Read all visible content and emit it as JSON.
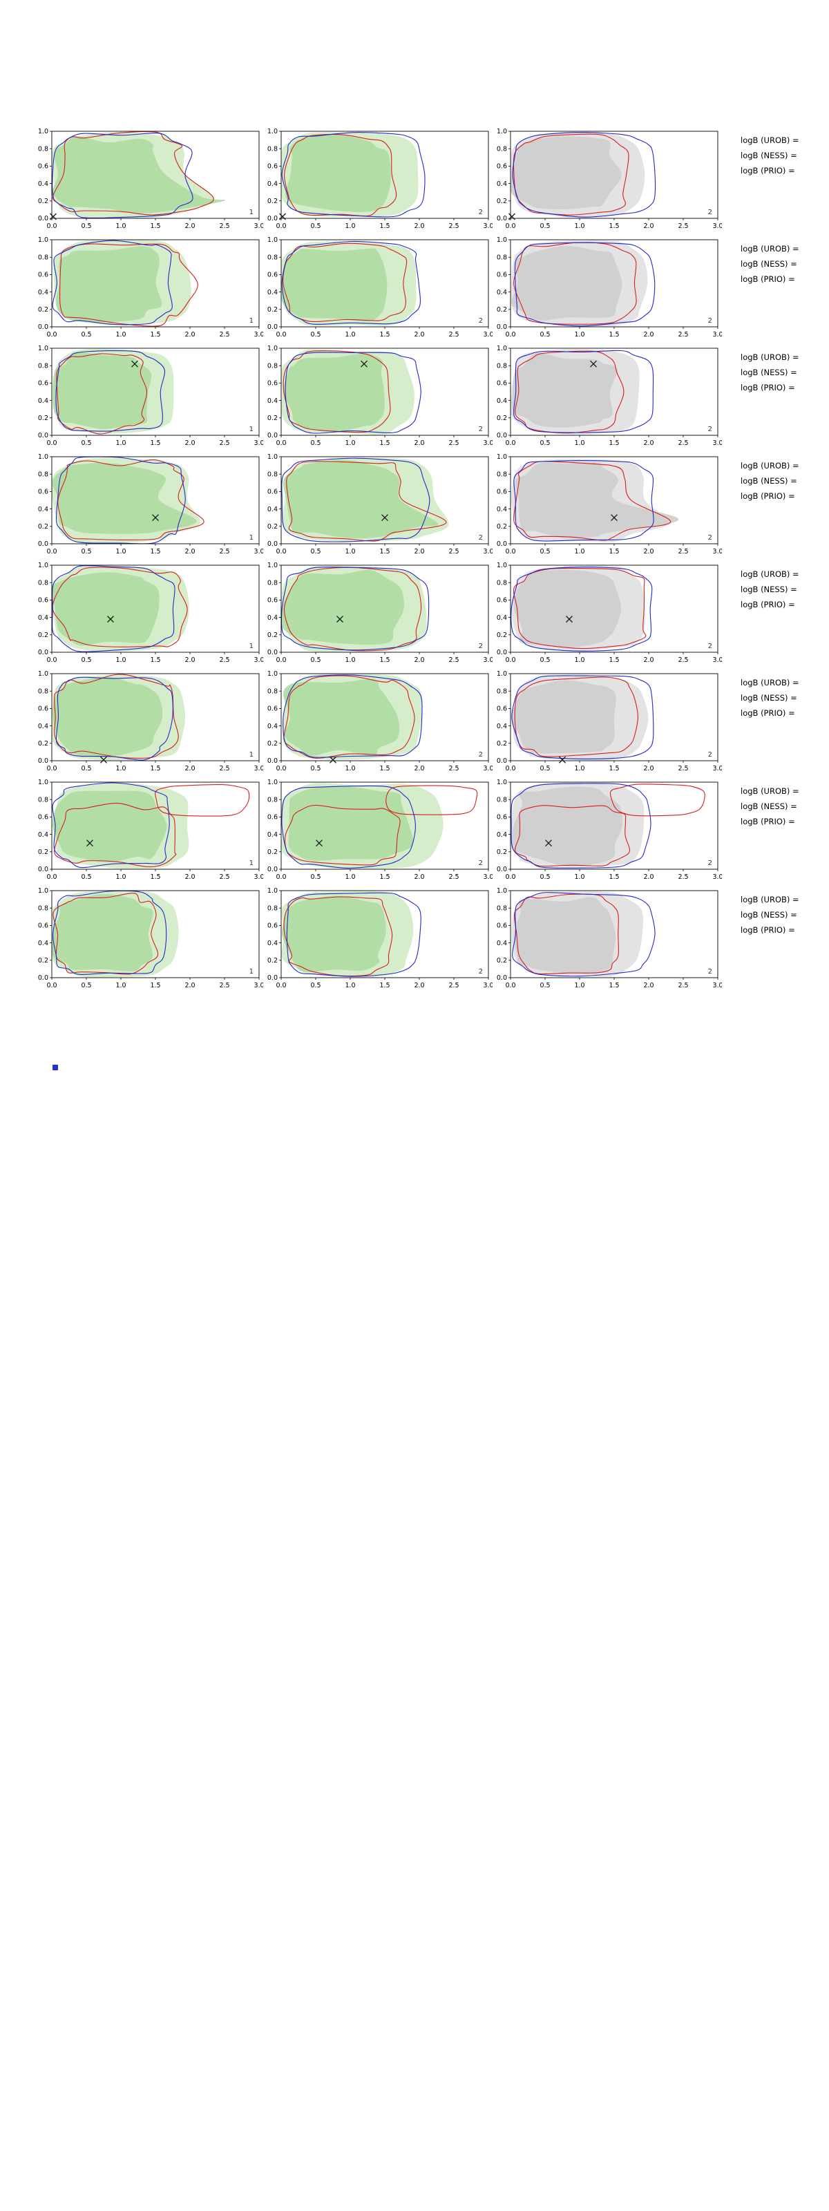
{
  "page": {
    "background": "#ffffff"
  },
  "colors": {
    "red_line": "#d81e1e",
    "blue_line": "#2228cc",
    "green_fill_outer": "#d6edcb",
    "green_fill_inner": "#aedca2",
    "gray_fill_outer": "#e3e3e3",
    "gray_fill_inner": "#cdcdcd",
    "axis": "#000000",
    "tick_label": "#000000",
    "corner_label": "#333333",
    "marker": "#1a1a1a",
    "stray_marker": "#2233cc"
  },
  "chart_data": {
    "type": "contour_grid",
    "rows": 8,
    "cols": 3,
    "xlim": [
      0,
      3
    ],
    "ylim": [
      0,
      1
    ],
    "x_ticks": [
      "0.0",
      "0.5",
      "1.0",
      "1.5",
      "2.0",
      "2.5",
      "3.0"
    ],
    "y_ticks": [
      "0.0",
      "0.2",
      "0.4",
      "0.6",
      "0.8",
      "1.0"
    ],
    "legend": "red and blue KDE contour lines over green (cols 1-2) / gray (col 3) filled density regions",
    "row_annotations": [
      [
        "logB (UROB) =",
        "logB (NESS) =",
        "logB (PRIO) ="
      ],
      [
        "logB (UROB) =",
        "logB (NESS) =",
        "logB (PRIO) ="
      ],
      [
        "logB (UROB) =",
        "logB (NESS) =",
        "logB (PRIO) ="
      ],
      [
        "logB (UROB) =",
        "logB (NESS) =",
        "logB (PRIO) ="
      ],
      [
        "logB (UROB) =",
        "logB (NESS) =",
        "logB (PRIO) ="
      ],
      [
        "logB (UROB) =",
        "logB (NESS) =",
        "logB (PRIO) ="
      ],
      [
        "logB (UROB) =",
        "logB (NESS) =",
        "logB (PRIO) ="
      ],
      [
        "logB (UROB) =",
        "logB (NESS) =",
        "logB (PRIO) ="
      ]
    ],
    "panels": [
      {
        "row": 1,
        "col": 1,
        "corner_label": "1",
        "fill": "green",
        "marker": [
          0.02,
          0.02
        ],
        "blue_max": 2.0,
        "red_max": 1.9,
        "fill_max": 1.95,
        "features": {
          "finger": {
            "y": 0.2,
            "x": 2.5
          }
        }
      },
      {
        "row": 1,
        "col": 2,
        "corner_label": "2",
        "fill": "green",
        "marker": [
          0.02,
          0.02
        ],
        "blue_max": 2.05,
        "red_max": 1.65,
        "fill_max": 2.0,
        "features": null
      },
      {
        "row": 1,
        "col": 3,
        "corner_label": "2",
        "fill": "gray",
        "marker": [
          0.02,
          0.02
        ],
        "blue_max": 2.1,
        "red_max": 1.7,
        "fill_max": 1.9,
        "features": null
      },
      {
        "row": 2,
        "col": 1,
        "corner_label": "1",
        "fill": "green",
        "marker": null,
        "blue_max": 1.75,
        "red_max": 2.0,
        "fill_max": 2.0,
        "features": null
      },
      {
        "row": 2,
        "col": 2,
        "corner_label": "2",
        "fill": "green",
        "marker": null,
        "blue_max": 2.0,
        "red_max": 1.8,
        "fill_max": 2.0,
        "features": null
      },
      {
        "row": 2,
        "col": 3,
        "corner_label": "2",
        "fill": "gray",
        "marker": null,
        "blue_max": 2.05,
        "red_max": 1.8,
        "fill_max": 1.95,
        "features": null
      },
      {
        "row": 3,
        "col": 1,
        "corner_label": "1",
        "fill": "green",
        "marker": [
          1.2,
          0.82
        ],
        "blue_max": 1.6,
        "red_max": 1.35,
        "fill_max": 1.8,
        "features": null
      },
      {
        "row": 3,
        "col": 2,
        "corner_label": "2",
        "fill": "green",
        "marker": [
          1.2,
          0.82
        ],
        "blue_max": 2.0,
        "red_max": 1.55,
        "fill_max": 1.9,
        "features": null
      },
      {
        "row": 3,
        "col": 3,
        "corner_label": "2",
        "fill": "gray",
        "marker": [
          1.2,
          0.82
        ],
        "blue_max": 2.05,
        "red_max": 1.6,
        "fill_max": 1.9,
        "features": null
      },
      {
        "row": 4,
        "col": 1,
        "corner_label": "1",
        "fill": "green",
        "marker": [
          1.5,
          0.3
        ],
        "blue_max": 1.9,
        "red_max": 1.9,
        "fill_max": 2.0,
        "features": {
          "finger": {
            "y": 0.3,
            "x": 2.3
          }
        }
      },
      {
        "row": 4,
        "col": 2,
        "corner_label": "2",
        "fill": "green",
        "marker": [
          1.5,
          0.3
        ],
        "blue_max": 2.1,
        "red_max": 1.8,
        "fill_max": 2.25,
        "features": {
          "finger": {
            "y": 0.3,
            "x": 2.72
          }
        }
      },
      {
        "row": 4,
        "col": 3,
        "corner_label": "2",
        "fill": "gray",
        "marker": [
          1.5,
          0.3
        ],
        "blue_max": 2.05,
        "red_max": 1.7,
        "fill_max": 1.95,
        "features": {
          "finger": {
            "y": 0.3,
            "x": 2.6
          }
        }
      },
      {
        "row": 5,
        "col": 1,
        "corner_label": "1",
        "fill": "green",
        "marker": [
          0.85,
          0.38
        ],
        "blue_max": 1.75,
        "red_max": 1.95,
        "fill_max": 1.95,
        "features": null
      },
      {
        "row": 5,
        "col": 2,
        "corner_label": "2",
        "fill": "green",
        "marker": [
          0.85,
          0.38
        ],
        "blue_max": 2.1,
        "red_max": 2.0,
        "fill_max": 2.1,
        "features": null
      },
      {
        "row": 5,
        "col": 3,
        "corner_label": "2",
        "fill": "gray",
        "marker": [
          0.85,
          0.38
        ],
        "blue_max": 2.05,
        "red_max": 2.0,
        "fill_max": 1.95,
        "features": null
      },
      {
        "row": 6,
        "col": 1,
        "corner_label": "1",
        "fill": "green",
        "marker": [
          0.75,
          0.01
        ],
        "blue_max": 1.7,
        "red_max": 1.85,
        "fill_max": 1.95,
        "features": null
      },
      {
        "row": 6,
        "col": 2,
        "corner_label": "2",
        "fill": "green",
        "marker": [
          0.75,
          0.01
        ],
        "blue_max": 2.0,
        "red_max": 1.9,
        "fill_max": 2.05,
        "features": null
      },
      {
        "row": 6,
        "col": 3,
        "corner_label": "2",
        "fill": "gray",
        "marker": [
          0.75,
          0.01
        ],
        "blue_max": 2.1,
        "red_max": 1.85,
        "fill_max": 1.95,
        "features": null
      },
      {
        "row": 7,
        "col": 1,
        "corner_label": "1",
        "fill": "green",
        "marker": [
          0.55,
          0.3
        ],
        "blue_max": 1.7,
        "red_max": 1.8,
        "fill_max": 2.0,
        "features": {
          "toploop": {
            "x0": 1.5,
            "x1": 2.85,
            "y0": 0.62,
            "y1": 0.97
          },
          "red_y1": 0.72
        }
      },
      {
        "row": 7,
        "col": 2,
        "corner_label": "2",
        "fill": "green",
        "marker": [
          0.55,
          0.3
        ],
        "blue_max": 1.9,
        "red_max": 1.7,
        "fill_max": 2.3,
        "features": {
          "toploop": {
            "x0": 1.5,
            "x1": 2.85,
            "y0": 0.62,
            "y1": 0.97
          },
          "red_y1": 0.72
        }
      },
      {
        "row": 7,
        "col": 3,
        "corner_label": "2",
        "fill": "gray",
        "marker": [
          0.55,
          0.3
        ],
        "blue_max": 2.0,
        "red_max": 1.7,
        "fill_max": 1.95,
        "features": {
          "toploop": {
            "x0": 1.45,
            "x1": 2.8,
            "y0": 0.62,
            "y1": 0.97
          },
          "red_y1": 0.72
        }
      },
      {
        "row": 8,
        "col": 1,
        "corner_label": "1",
        "fill": "green",
        "marker": null,
        "blue_max": 1.6,
        "red_max": 1.5,
        "fill_max": 1.8,
        "features": null
      },
      {
        "row": 8,
        "col": 2,
        "corner_label": "2",
        "fill": "green",
        "marker": null,
        "blue_max": 2.0,
        "red_max": 1.6,
        "fill_max": 1.9,
        "features": null
      },
      {
        "row": 8,
        "col": 3,
        "corner_label": "2",
        "fill": "gray",
        "marker": null,
        "blue_max": 2.05,
        "red_max": 1.6,
        "fill_max": 1.9,
        "features": null
      }
    ]
  },
  "stray_marker": {
    "present": true
  }
}
